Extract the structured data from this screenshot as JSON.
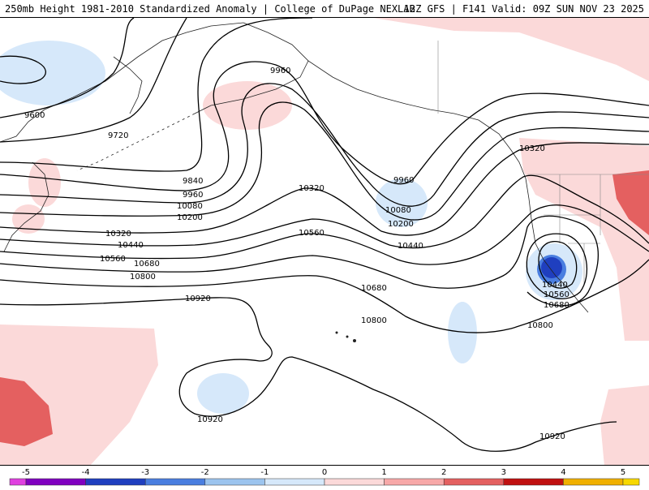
{
  "header": {
    "left": "250mb Height 1981-2010 Standardized Anomaly | College of DuPage NEXLAB",
    "right": "12Z GFS | F141 Valid: 09Z SUN NOV 23 2025"
  },
  "contours": {
    "c9600": "9600",
    "c9720": "9720",
    "c9840": "9840",
    "c9960a": "9960",
    "c9960b": "9960",
    "c9960c": "9960",
    "c10080a": "10080",
    "c10080b": "10080",
    "c10200a": "10200",
    "c10200b": "10200",
    "c10320a": "10320",
    "c10320b": "10320",
    "c10320c": "10320",
    "c10440a": "10440",
    "c10440b": "10440",
    "c10440c": "10440",
    "c10560a": "10560",
    "c10560b": "10560",
    "c10560c": "10560",
    "c10680a": "10680",
    "c10680b": "10680",
    "c10680c": "10680",
    "c10800a": "10800",
    "c10800b": "10800",
    "c10800c": "10800",
    "c10920a": "10920",
    "c10920b": "10920",
    "c10920c": "10920"
  },
  "colorbar": {
    "labels": [
      "-5",
      "-4",
      "-3",
      "-2",
      "-1",
      "0",
      "1",
      "2",
      "3",
      "4",
      "5"
    ],
    "colors": [
      "#e040e0",
      "#8000c0",
      "#1f3fbf",
      "#4a7ee0",
      "#9cc4ee",
      "#d6e8fa",
      "#fbd9d9",
      "#f7a8a8",
      "#e46060",
      "#c01010",
      "#f0b000",
      "#f7d800"
    ]
  }
}
